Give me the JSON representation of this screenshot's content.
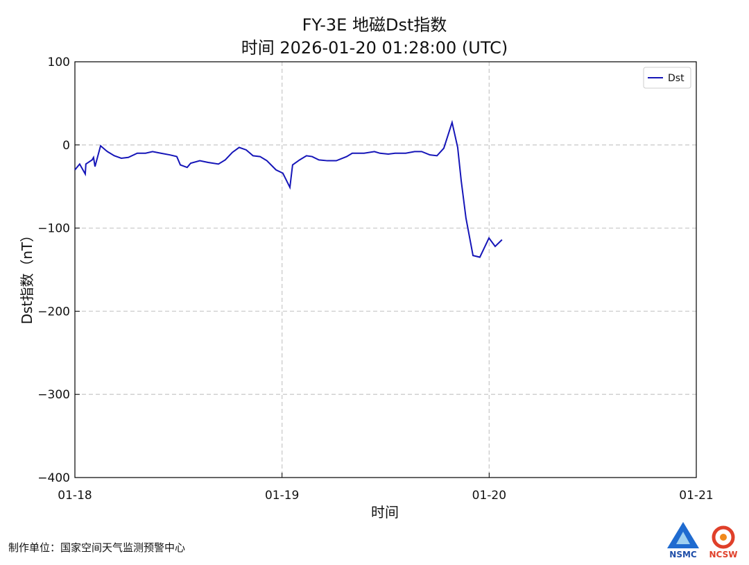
{
  "chart_data": {
    "type": "line",
    "title": "FY-3E 地磁Dst指数",
    "subtitle": "时间 2026-01-20 01:28:00 (UTC)",
    "x_label": "时间",
    "y_label": "Dst指数（nT）",
    "xlim": [
      0,
      3
    ],
    "xticks": [
      {
        "value": 0,
        "label": "01-18"
      },
      {
        "value": 1,
        "label": "01-19"
      },
      {
        "value": 2,
        "label": "01-20"
      },
      {
        "value": 3,
        "label": "01-21"
      }
    ],
    "ylim": [
      -400,
      100
    ],
    "yticks": [
      {
        "value": -400,
        "label": "−400"
      },
      {
        "value": -300,
        "label": "−300"
      },
      {
        "value": -200,
        "label": "−200"
      },
      {
        "value": -100,
        "label": "−100"
      },
      0,
      100
    ],
    "grid": true,
    "legend": "upper right",
    "x": [
      0,
      0.023,
      0.05,
      0.053,
      0.083,
      0.09,
      0.097,
      0.124,
      0.147,
      0.157,
      0.19,
      0.224,
      0.258,
      0.301,
      0.341,
      0.375,
      0.415,
      0.459,
      0.492,
      0.509,
      0.542,
      0.559,
      0.603,
      0.643,
      0.693,
      0.726,
      0.76,
      0.793,
      0.827,
      0.86,
      0.894,
      0.927,
      0.971,
      1.004,
      1.038,
      1.051,
      1.085,
      1.118,
      1.145,
      1.178,
      1.219,
      1.262,
      1.312,
      1.339,
      1.396,
      1.446,
      1.473,
      1.513,
      1.546,
      1.597,
      1.64,
      1.674,
      1.714,
      1.748,
      1.781,
      1.821,
      1.848,
      1.865,
      1.888,
      1.922,
      1.955,
      1.999,
      2.029,
      2.062
    ],
    "series": [
      {
        "name": "Dst",
        "color": "#1515b8",
        "values": [
          -30,
          -23,
          -35,
          -23,
          -18,
          -15,
          -26,
          -1,
          -6,
          -8,
          -13,
          -16,
          -15,
          -10,
          -10,
          -8,
          -10,
          -12,
          -14,
          -24,
          -27,
          -22,
          -19,
          -21,
          -23,
          -18,
          -9,
          -3,
          -6,
          -13,
          -14,
          -19,
          -30,
          -34,
          -51,
          -24,
          -18,
          -13,
          -14,
          -18,
          -19,
          -19,
          -14,
          -10,
          -10,
          -8,
          -10,
          -11,
          -10,
          -10,
          -8,
          -8,
          -12,
          -13,
          -4,
          27,
          -3,
          -43,
          -88,
          -133,
          -135,
          -112,
          -122,
          -114
        ]
      }
    ]
  },
  "footer": {
    "credit": "制作单位：国家空间天气监测预警中心",
    "logo_left": "NSMC",
    "logo_right": "NCSW"
  }
}
